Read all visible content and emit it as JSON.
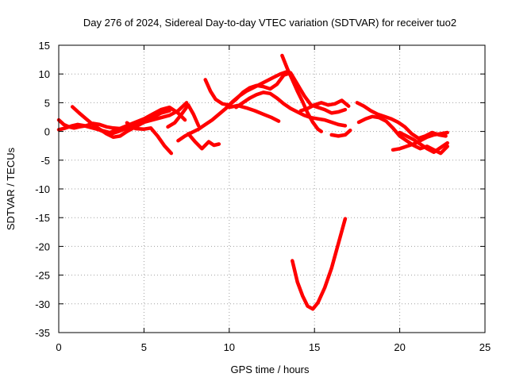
{
  "chart_data": {
    "type": "line",
    "title": "Day 276 of 2024, Sidereal Day-to-day VTEC variation (SDTVAR) for receiver tuo2",
    "xlabel": "GPS time / hours",
    "ylabel": "SDTVAR / TECUs",
    "xlim": [
      0,
      25
    ],
    "ylim": [
      -35,
      15
    ],
    "xticks": [
      0,
      5,
      10,
      15,
      20,
      25
    ],
    "yticks": [
      15,
      10,
      5,
      0,
      -5,
      -10,
      -15,
      -20,
      -25,
      -30,
      -35
    ],
    "grid": true,
    "legend": "none",
    "color": "#ff0000",
    "series": [
      {
        "name": "s1",
        "x": [
          0,
          0.3,
          0.6,
          0.9,
          1.2,
          1.6,
          2.0,
          2.4,
          2.8,
          3.2,
          3.6,
          4.0,
          4.4,
          4.8,
          5.2
        ],
        "y": [
          2,
          1.2,
          0.8,
          0.6,
          0.8,
          1.0,
          1.4,
          1.2,
          0.8,
          0.6,
          0.5,
          0.8,
          1.2,
          1.6,
          2.2
        ]
      },
      {
        "name": "s2",
        "x": [
          0,
          0.4,
          0.8,
          1.1,
          1.5,
          2.0,
          2.5,
          3.0,
          3.5,
          4.0,
          4.5,
          5.0,
          5.5,
          6.0,
          6.5,
          7.0,
          7.4
        ],
        "y": [
          0.3,
          0.6,
          1.0,
          1.2,
          1.0,
          0.6,
          0.2,
          -0.2,
          0.4,
          1.0,
          1.6,
          2.2,
          3.0,
          3.8,
          4.2,
          3.2,
          2.0
        ]
      },
      {
        "name": "s3",
        "x": [
          0.8,
          1.2,
          1.6,
          2.0,
          2.4,
          2.8,
          3.2,
          3.6,
          4.0,
          4.5,
          5.0,
          5.5,
          6.0,
          6.5
        ],
        "y": [
          4.3,
          3.2,
          2.2,
          1.2,
          0.4,
          -0.4,
          -1.0,
          -0.8,
          0.0,
          0.8,
          1.6,
          2.4,
          3.2,
          3.6
        ]
      },
      {
        "name": "s4",
        "x": [
          2.2,
          2.6,
          3.0,
          3.5,
          4.0,
          4.5,
          5.0,
          5.5,
          6.0,
          6.5,
          7.0,
          7.5
        ],
        "y": [
          0.5,
          0.0,
          -0.5,
          0.0,
          0.6,
          1.2,
          1.6,
          2.0,
          2.4,
          2.8,
          3.6,
          5.0
        ]
      },
      {
        "name": "s5",
        "x": [
          4.0,
          4.5,
          5.0,
          5.4,
          5.8,
          6.2,
          6.6
        ],
        "y": [
          1.5,
          0.5,
          0.4,
          0.6,
          -0.8,
          -2.5,
          -3.8
        ]
      },
      {
        "name": "s6",
        "x": [
          6.4,
          6.8,
          7.2,
          7.6,
          7.9,
          8.2
        ],
        "y": [
          0.8,
          1.5,
          3.0,
          4.6,
          3.0,
          1.0
        ]
      },
      {
        "name": "s7",
        "x": [
          7.0,
          7.4,
          7.8,
          8.2,
          8.6,
          9.0,
          9.4,
          9.8,
          10.2,
          10.6,
          11.0,
          11.4,
          11.8,
          12.2,
          12.6,
          13.0,
          13.4
        ],
        "y": [
          -1.6,
          -0.8,
          -0.2,
          0.4,
          1.2,
          2.0,
          3.0,
          4.0,
          5.2,
          6.2,
          7.0,
          7.6,
          8.2,
          8.8,
          9.4,
          10.0,
          10.4
        ]
      },
      {
        "name": "s8",
        "x": [
          7.6,
          8.0,
          8.4,
          8.8,
          9.1,
          9.4
        ],
        "y": [
          -0.4,
          -1.8,
          -3.0,
          -1.8,
          -2.4,
          -2.2
        ]
      },
      {
        "name": "s9",
        "x": [
          8.6,
          8.9,
          9.2,
          9.6,
          10.0,
          10.4,
          10.8,
          11.2,
          11.6,
          12.0,
          12.4,
          12.8,
          13.2,
          13.6,
          14.0,
          14.4,
          14.8,
          15.2,
          15.6,
          16.0,
          16.4,
          16.8
        ],
        "y": [
          9.0,
          7.0,
          5.6,
          4.8,
          4.6,
          5.6,
          6.8,
          7.6,
          8.0,
          7.8,
          7.4,
          8.2,
          9.8,
          10.2,
          8.2,
          6.2,
          4.6,
          4.2,
          3.8,
          3.2,
          3.4,
          3.8
        ]
      },
      {
        "name": "s10",
        "x": [
          10.4,
          10.8,
          11.2,
          11.6,
          12.0,
          12.4,
          12.8,
          13.2,
          13.6,
          14.0,
          14.4,
          14.8,
          15.2,
          15.6,
          16.0,
          16.4,
          16.8
        ],
        "y": [
          4.2,
          5.0,
          5.8,
          6.4,
          6.8,
          6.6,
          5.8,
          4.8,
          4.0,
          3.4,
          2.8,
          2.4,
          2.2,
          2.0,
          1.6,
          1.2,
          1.0
        ]
      },
      {
        "name": "s11",
        "x": [
          10.0,
          10.5,
          11.0,
          11.5,
          12.0,
          12.5,
          12.9
        ],
        "y": [
          4.2,
          4.5,
          4.1,
          3.6,
          3.0,
          2.4,
          1.8
        ]
      },
      {
        "name": "s12",
        "x": [
          13.1,
          13.4,
          13.7,
          14.0,
          14.3,
          14.6,
          14.9,
          15.2,
          15.4
        ],
        "y": [
          13.2,
          11.0,
          9.0,
          7.0,
          5.2,
          3.2,
          1.6,
          0.4,
          0.0
        ]
      },
      {
        "name": "s13",
        "x": [
          13.7,
          14.0,
          14.3,
          14.6,
          14.9,
          15.2,
          15.6,
          16.0,
          16.4,
          16.8
        ],
        "y": [
          -22.5,
          -26.2,
          -28.6,
          -30.4,
          -30.9,
          -29.8,
          -27.2,
          -23.8,
          -19.5,
          -15.2
        ]
      },
      {
        "name": "s14",
        "x": [
          14.2,
          14.6,
          15.0,
          15.4,
          15.8,
          16.2,
          16.6,
          17.0
        ],
        "y": [
          3.6,
          4.0,
          4.6,
          5.0,
          4.6,
          4.8,
          5.4,
          4.4
        ]
      },
      {
        "name": "s15",
        "x": [
          16.0,
          16.4,
          16.8,
          17.1
        ],
        "y": [
          -0.6,
          -0.8,
          -0.6,
          0.2
        ]
      },
      {
        "name": "s16",
        "x": [
          17.5,
          17.9,
          18.3,
          18.7,
          19.1,
          19.5,
          19.9,
          20.3,
          20.7,
          21.1,
          21.5,
          21.9,
          22.3,
          22.7
        ],
        "y": [
          5.0,
          4.4,
          3.6,
          3.0,
          2.6,
          2.2,
          1.6,
          0.8,
          -0.4,
          -1.2,
          -0.8,
          -0.2,
          -0.6,
          -0.8
        ]
      },
      {
        "name": "s17",
        "x": [
          17.6,
          18.0,
          18.4,
          18.8,
          19.2,
          19.6,
          20.0,
          20.4,
          20.8,
          21.2,
          21.6,
          22.0,
          22.4,
          22.8
        ],
        "y": [
          1.6,
          2.2,
          2.6,
          2.4,
          1.8,
          0.6,
          -0.8,
          -1.6,
          -2.4,
          -3.0,
          -2.6,
          -3.2,
          -3.8,
          -2.6
        ]
      },
      {
        "name": "s18",
        "x": [
          19.6,
          20.0,
          20.4,
          20.8,
          21.2,
          21.6,
          22.0,
          22.4,
          22.8
        ],
        "y": [
          -3.2,
          -3.0,
          -2.6,
          -2.2,
          -1.6,
          -1.0,
          -0.6,
          -0.4,
          -0.2
        ]
      },
      {
        "name": "s19",
        "x": [
          20.0,
          20.4,
          20.8,
          21.2,
          21.6,
          22.0,
          22.4,
          22.8
        ],
        "y": [
          -0.2,
          -0.8,
          -1.4,
          -2.2,
          -3.0,
          -3.6,
          -2.8,
          -2.0
        ]
      }
    ]
  }
}
